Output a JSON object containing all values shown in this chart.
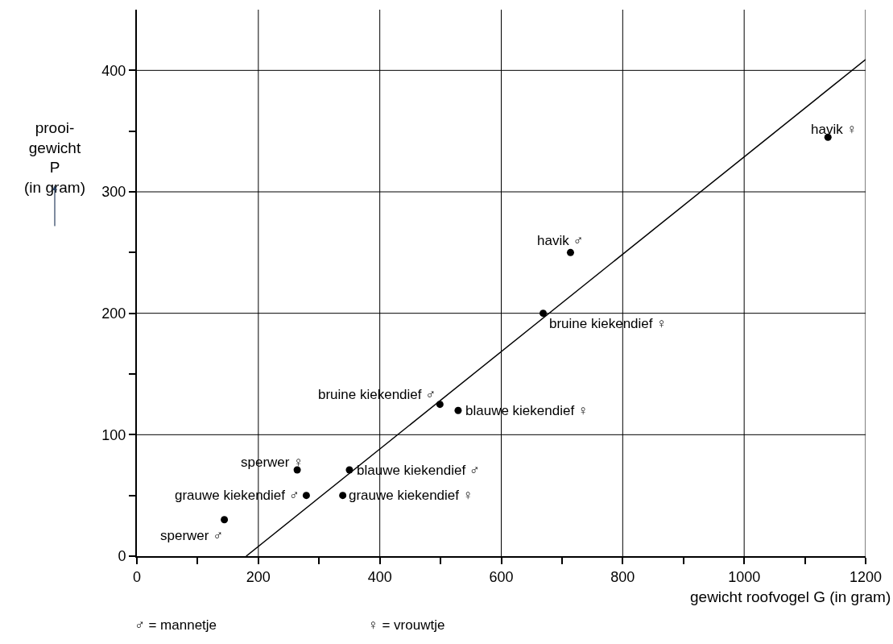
{
  "chart_data": {
    "type": "scatter",
    "xlabel": "gewicht roofvogel G (in gram)",
    "ylabel": "prooi-\ngewicht\nP\n(in gram)",
    "xlim": [
      0,
      1200
    ],
    "ylim": [
      0,
      450
    ],
    "xticks": [
      0,
      {
        "value": 100,
        "label": null
      },
      200,
      {
        "value": 300,
        "label": null
      },
      400,
      {
        "value": 500,
        "label": null
      },
      600,
      {
        "value": 700,
        "label": null
      },
      800,
      {
        "value": 900,
        "label": null
      },
      1000,
      {
        "value": 1100,
        "label": null
      },
      1200
    ],
    "yticks": [
      0,
      {
        "value": 50,
        "label": null
      },
      100,
      {
        "value": 150,
        "label": null
      },
      200,
      {
        "value": 250,
        "label": null
      },
      300,
      {
        "value": 350,
        "label": null
      },
      400
    ],
    "grid": true,
    "series": [
      {
        "color": "#000000",
        "marker": "circle",
        "x": [
          144,
          264,
          279,
          339,
          350,
          529,
          499,
          669,
          714,
          1138
        ],
        "values": [
          30,
          71,
          50,
          50,
          71,
          120,
          125,
          200,
          250,
          345
        ]
      },
      {
        "type": "line",
        "color": "#000000",
        "marker": "none",
        "line_style": "solid",
        "x": [
          180,
          1200
        ],
        "values": [
          0,
          409
        ]
      }
    ],
    "annotations": [
      {
        "text": "sperwer ♂",
        "x": 144,
        "y": 30
      },
      {
        "text": "sperwer ♀",
        "x": 264,
        "y": 71
      },
      {
        "text": "grauwe kiekendief ♂",
        "x": 279,
        "y": 50
      },
      {
        "text": "grauwe kiekendief ♀",
        "x": 339,
        "y": 50
      },
      {
        "text": "blauwe kiekendief ♂",
        "x": 350,
        "y": 71
      },
      {
        "text": "blauwe kiekendief ♀",
        "x": 529,
        "y": 120
      },
      {
        "text": "bruine kiekendief ♂",
        "x": 499,
        "y": 125
      },
      {
        "text": "bruine kiekendief ♀",
        "x": 669,
        "y": 200
      },
      {
        "text": "havik ♂",
        "x": 714,
        "y": 250
      },
      {
        "text": "havik ♀",
        "x": 1138,
        "y": 345
      },
      "♂ = mannetje",
      "♀ = vrouwtje"
    ]
  }
}
